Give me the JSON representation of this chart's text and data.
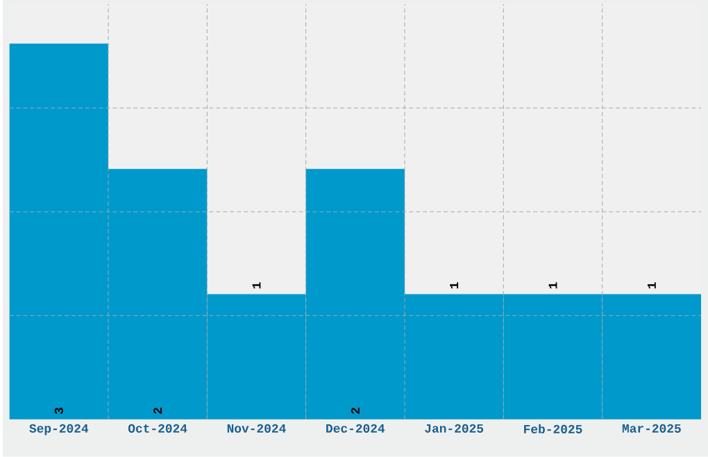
{
  "chart_data": {
    "type": "bar",
    "categories": [
      "Sep-2024",
      "Oct-2024",
      "Nov-2024",
      "Dec-2024",
      "Jan-2025",
      "Feb-2025",
      "Mar-2025"
    ],
    "values": [
      3,
      2,
      1,
      2,
      1,
      1,
      1
    ],
    "color": "#0099cc",
    "data_labels": true,
    "grid": true,
    "tick_labels": "x"
  }
}
